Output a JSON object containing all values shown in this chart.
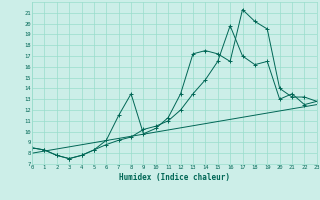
{
  "xlabel": "Humidex (Indice chaleur)",
  "bg_color": "#cceee8",
  "grid_color": "#99ddcc",
  "line_color": "#006655",
  "xlim": [
    0,
    23
  ],
  "ylim": [
    7,
    22
  ],
  "xticks": [
    0,
    1,
    2,
    3,
    4,
    5,
    6,
    7,
    8,
    9,
    10,
    11,
    12,
    13,
    14,
    15,
    16,
    17,
    18,
    19,
    20,
    21,
    22,
    23
  ],
  "yticks": [
    7,
    8,
    9,
    10,
    11,
    12,
    13,
    14,
    15,
    16,
    17,
    18,
    19,
    20,
    21
  ],
  "series1_x": [
    0,
    1,
    2,
    3,
    4,
    5,
    6,
    7,
    8,
    9,
    10,
    11,
    12,
    13,
    14,
    15,
    16,
    17,
    18,
    19,
    20,
    21,
    22,
    23
  ],
  "series1_y": [
    8.5,
    8.3,
    7.8,
    7.5,
    7.8,
    8.3,
    9.2,
    11.5,
    13.5,
    9.8,
    10.3,
    11.3,
    13.5,
    17.2,
    17.5,
    17.2,
    16.5,
    21.3,
    20.2,
    19.5,
    14.0,
    13.2,
    13.2,
    12.8
  ],
  "series2_x": [
    0,
    1,
    2,
    3,
    4,
    5,
    6,
    7,
    8,
    9,
    10,
    11,
    12,
    13,
    14,
    15,
    16,
    17,
    18,
    19,
    20,
    21,
    22,
    23
  ],
  "series2_y": [
    8.5,
    8.3,
    7.8,
    7.5,
    7.8,
    8.3,
    8.8,
    9.2,
    9.5,
    10.2,
    10.5,
    11.0,
    12.0,
    13.5,
    14.8,
    16.5,
    19.8,
    17.0,
    16.2,
    16.5,
    13.0,
    13.5,
    12.5,
    12.8
  ],
  "series3_x": [
    0,
    23
  ],
  "series3_y": [
    8.0,
    12.5
  ]
}
